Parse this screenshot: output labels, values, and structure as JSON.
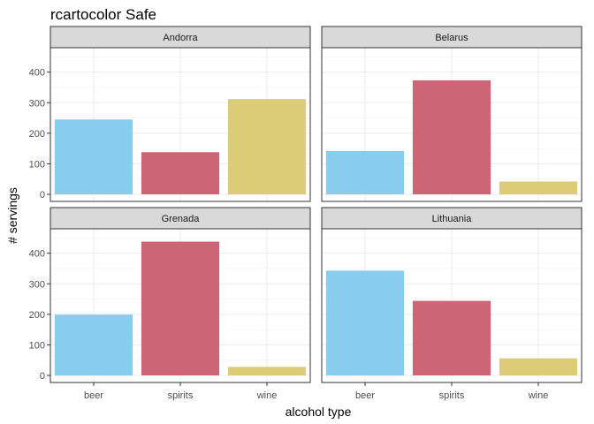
{
  "chart_data": {
    "type": "bar",
    "title": "rcartocolor Safe",
    "xlabel": "alcohol type",
    "ylabel": "# servings",
    "categories": [
      "beer",
      "spirits",
      "wine"
    ],
    "colors": [
      "#88CCEE",
      "#CC6677",
      "#DDCC77"
    ],
    "ylim": [
      0,
      480
    ],
    "yticks": [
      0,
      100,
      200,
      300,
      400
    ],
    "grid": true,
    "legend": "none",
    "panels": [
      {
        "name": "Andorra",
        "values": [
          245,
          138,
          312
        ]
      },
      {
        "name": "Belarus",
        "values": [
          142,
          373,
          42
        ]
      },
      {
        "name": "Grenada",
        "values": [
          199,
          438,
          28
        ]
      },
      {
        "name": "Lithuania",
        "values": [
          343,
          244,
          56
        ]
      }
    ]
  }
}
